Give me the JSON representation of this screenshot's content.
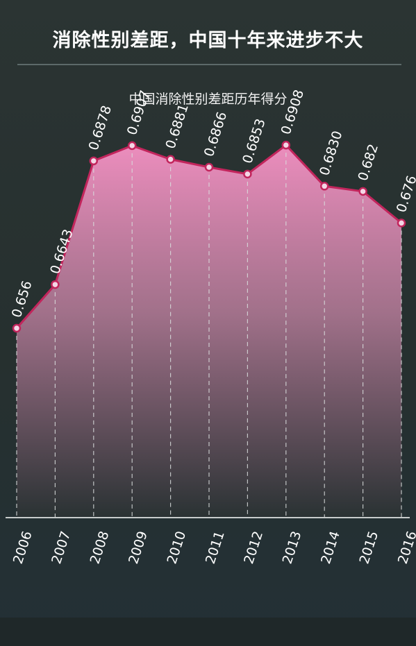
{
  "header": {
    "headline": "消除性别差距，中国十年来进步不大"
  },
  "colors": {
    "line": "#c2255c",
    "fill_top": "#f08fc0",
    "fill_bottom": "#2a3233",
    "baseline": "#c8cccc",
    "guide": "#d9dddd",
    "text": "#ffffff"
  },
  "chart_data": {
    "type": "area",
    "title": "中国消除性别差距历年得分",
    "xlabel": "",
    "ylabel": "",
    "categories": [
      "2006",
      "2007",
      "2008",
      "2009",
      "2010",
      "2011",
      "2012",
      "2013",
      "2014",
      "2015",
      "2016"
    ],
    "values": [
      0.656,
      0.6643,
      0.6878,
      0.6907,
      0.6881,
      0.6866,
      0.6853,
      0.6908,
      0.683,
      0.682,
      0.676
    ],
    "value_labels": [
      "0.656",
      "0.6643",
      "0.6878",
      "0.6907",
      "0.6881",
      "0.6866",
      "0.6853",
      "0.6908",
      "0.6830",
      "0.682",
      "0.676"
    ],
    "ylim": [
      0.62,
      0.6986
    ],
    "grid": false,
    "legend": "none"
  }
}
